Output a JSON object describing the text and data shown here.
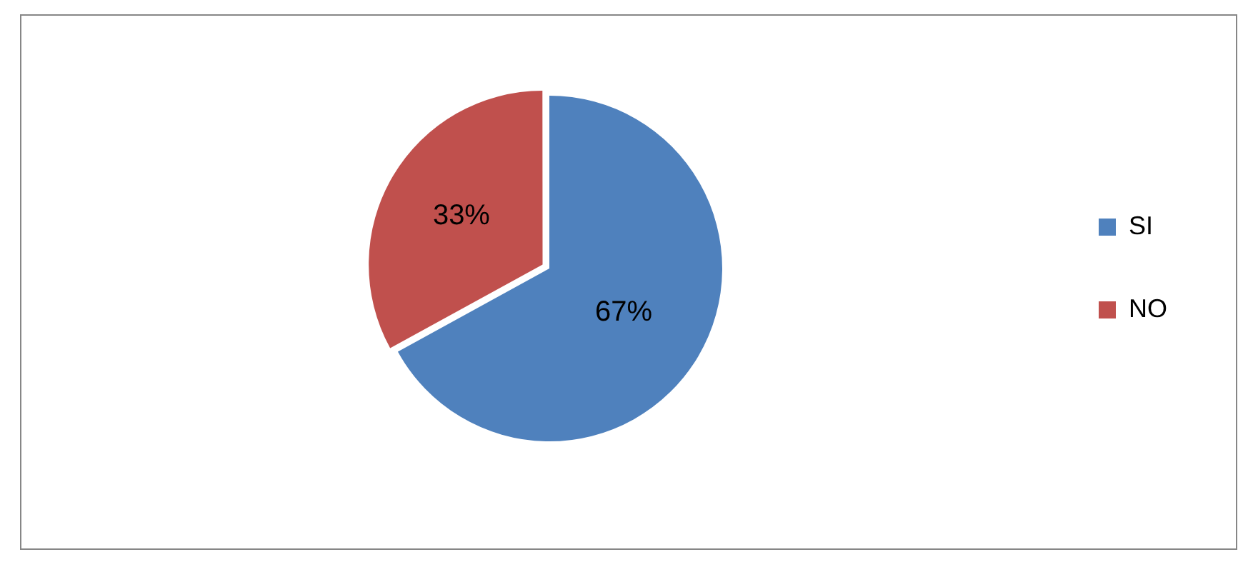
{
  "chart_data": {
    "type": "pie",
    "categories": [
      "SI",
      "NO"
    ],
    "values": [
      67,
      33
    ],
    "colors": [
      "#4f81bd",
      "#c0504d"
    ],
    "value_labels": [
      "67%",
      "33%"
    ],
    "legend": "right"
  }
}
